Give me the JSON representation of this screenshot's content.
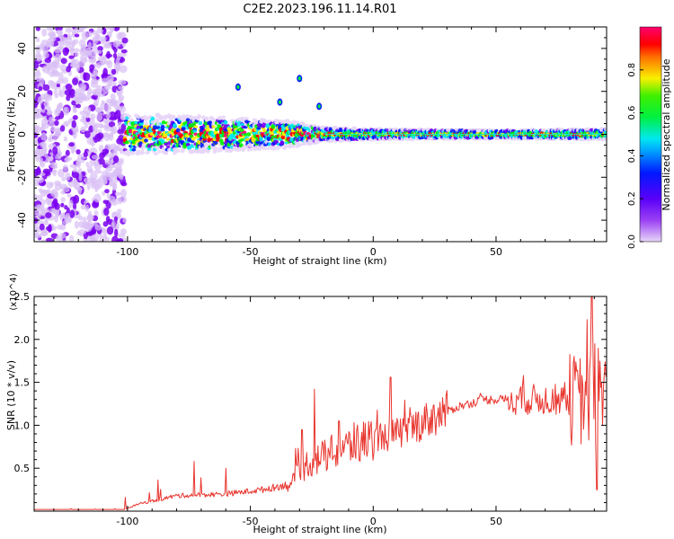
{
  "title": "C2E2.2023.196.11.14.R01",
  "chart_data": [
    {
      "type": "heatmap",
      "name": "spectrogram",
      "xlabel": "Height of straight line (km)",
      "ylabel": "Frequency (Hz)",
      "xlim": [
        -138,
        95
      ],
      "ylim": [
        -50,
        50
      ],
      "x_ticks": [
        -100,
        -50,
        0,
        50
      ],
      "y_ticks": [
        -40,
        -20,
        0,
        20,
        40
      ],
      "grid": false,
      "colorbar": {
        "label": "Normalized spectral amplitude",
        "range": [
          0,
          1
        ],
        "ticks": [
          0.0,
          0.2,
          0.4,
          0.6,
          0.8
        ],
        "tick_labels": [
          "0.0",
          "0.2",
          "0.4",
          "0.6",
          "0.8"
        ],
        "colors": [
          "#e8d6f8",
          "#7a00f0",
          "#0018ff",
          "#00e8f0",
          "#00f000",
          "#f8f000",
          "#ff0000",
          "#ff0070"
        ]
      },
      "features": {
        "noise_region_x": [
          -138,
          -101
        ],
        "band_center_hz": 0,
        "band_halfwidth_hz": [
          [
            -100,
            6
          ],
          [
            -60,
            5
          ],
          [
            -35,
            4
          ],
          [
            -20,
            2
          ],
          [
            0,
            1.5
          ],
          [
            50,
            1.2
          ],
          [
            95,
            1.5
          ]
        ],
        "spikes": [
          [
            -38,
            15
          ],
          [
            -30,
            26
          ],
          [
            -22,
            13
          ],
          [
            -55,
            22
          ]
        ]
      }
    },
    {
      "type": "line",
      "name": "snr",
      "xlabel": "Height of straight line (km)",
      "ylabel": "SNR (10 * v/v)",
      "y_multiplier": "(x10^4)",
      "xlim": [
        -138,
        95
      ],
      "ylim": [
        0,
        2.5
      ],
      "x_ticks": [
        -100,
        -50,
        0,
        50
      ],
      "y_ticks": [
        0.5,
        1.0,
        1.5,
        2.0,
        2.5
      ],
      "y_tick_labels": [
        "0.5",
        "1.0",
        "1.5",
        "2.0",
        "2.5"
      ],
      "color": "#e8352e",
      "grid": false,
      "trend": [
        [
          -138,
          0.02
        ],
        [
          -101,
          0.02
        ],
        [
          -96,
          0.08
        ],
        [
          -80,
          0.18
        ],
        [
          -60,
          0.2
        ],
        [
          -45,
          0.25
        ],
        [
          -33,
          0.32
        ],
        [
          -27,
          0.55
        ],
        [
          -15,
          0.7
        ],
        [
          0,
          0.85
        ],
        [
          10,
          0.9
        ],
        [
          25,
          1.1
        ],
        [
          35,
          1.22
        ],
        [
          45,
          1.3
        ],
        [
          55,
          1.3
        ],
        [
          70,
          1.3
        ],
        [
          80,
          1.3
        ],
        [
          95,
          1.3
        ]
      ],
      "peaks": [
        [
          -73,
          0.58
        ],
        [
          -60,
          0.5
        ],
        [
          -29,
          0.95
        ],
        [
          -24,
          1.42
        ],
        [
          -14,
          1.05
        ],
        [
          7,
          1.56
        ],
        [
          22,
          1.15
        ],
        [
          60,
          1.45
        ],
        [
          78,
          1.5
        ],
        [
          87,
          2.23
        ],
        [
          89,
          2.5
        ],
        [
          91,
          0.25
        ],
        [
          94,
          1.6
        ]
      ]
    }
  ]
}
